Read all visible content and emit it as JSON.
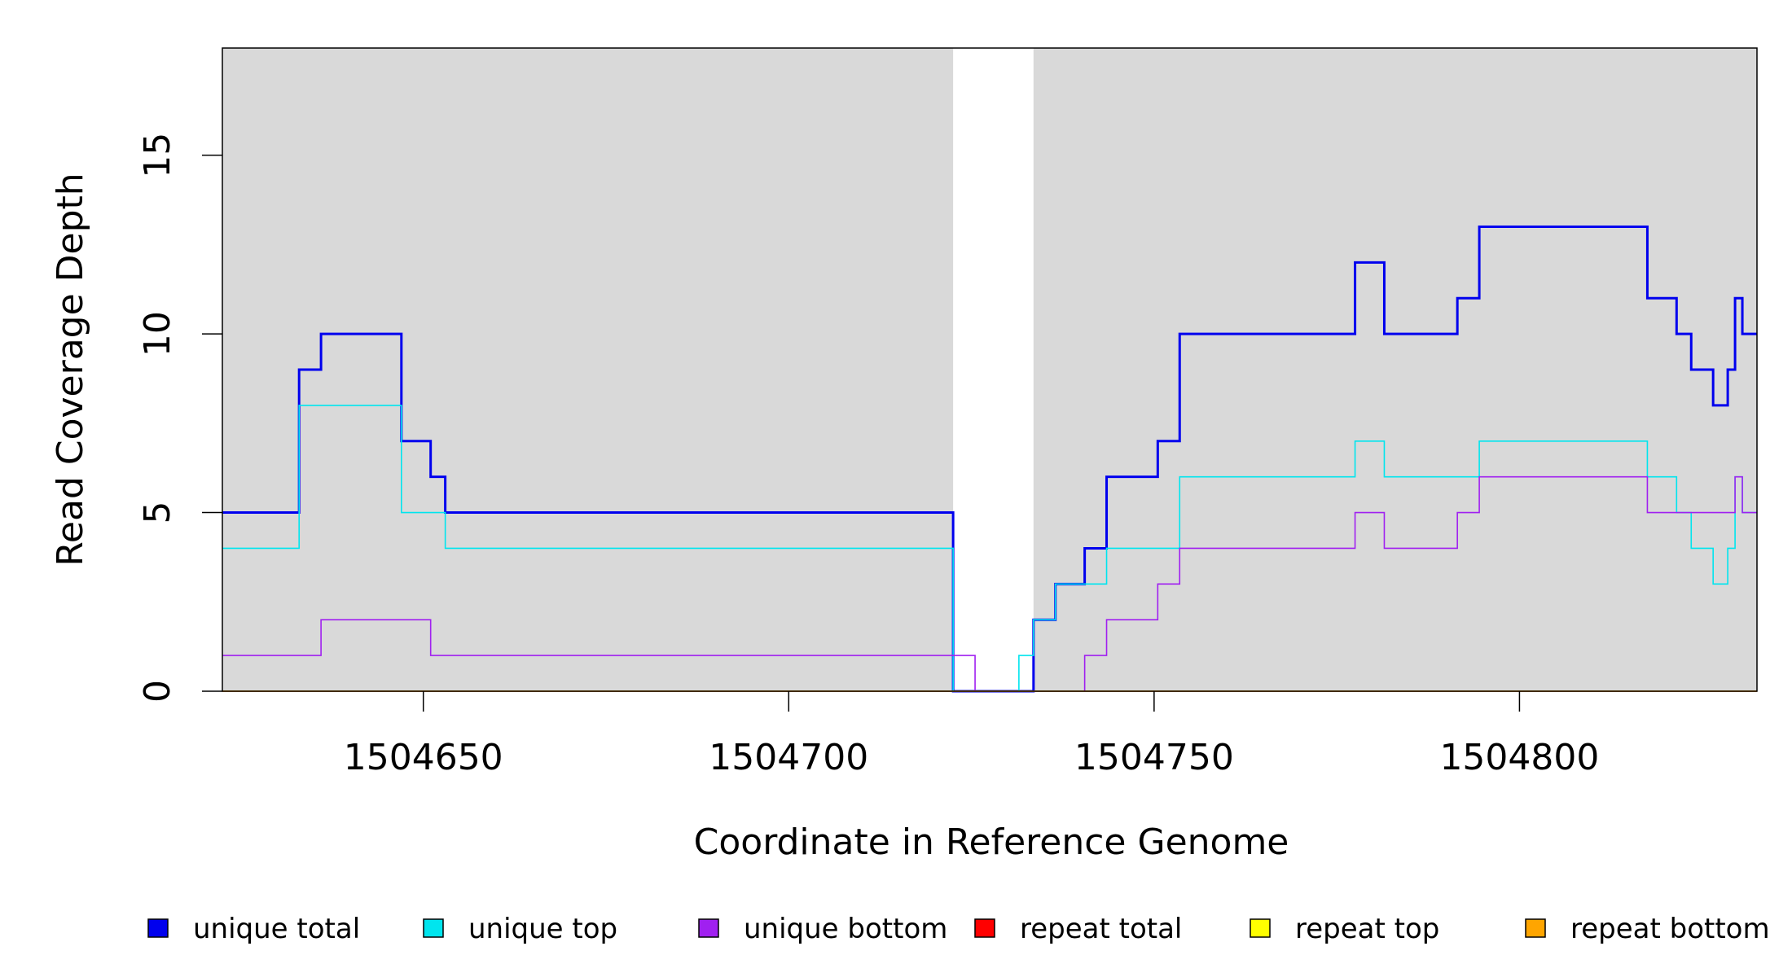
{
  "chart_data": {
    "type": "line",
    "title": "",
    "xlabel": "Coordinate in Reference Genome",
    "ylabel": "Read Coverage Depth",
    "xlim": [
      1504622.5,
      1504832.5
    ],
    "ylim": [
      0,
      18
    ],
    "x_ticks": [
      1504650,
      1504700,
      1504750,
      1504800
    ],
    "y_ticks": [
      0,
      5,
      10,
      15
    ],
    "x_tick_labels": [
      "1504650",
      "1504700",
      "1504750",
      "1504800"
    ],
    "y_tick_labels": [
      "0",
      "5",
      "10",
      "15"
    ],
    "background_color": "#d9d9d9",
    "gap_region": [
      1504722.5,
      1504733.5
    ],
    "legend_position": "bottom",
    "step_interpretation": "each point [x, y] starts a step at coordinate x holding depth y until the next point",
    "series": [
      {
        "name": "unique total",
        "color": "#0000ee",
        "points": [
          [
            1504622.5,
            5
          ],
          [
            1504633,
            5
          ],
          [
            1504633,
            9
          ],
          [
            1504636,
            9
          ],
          [
            1504636,
            10
          ],
          [
            1504647,
            10
          ],
          [
            1504647,
            7
          ],
          [
            1504651,
            7
          ],
          [
            1504651,
            6
          ],
          [
            1504653,
            6
          ],
          [
            1504653,
            5
          ],
          [
            1504722.5,
            5
          ],
          [
            1504722.5,
            0
          ],
          [
            1504733.5,
            0
          ],
          [
            1504733.5,
            2
          ],
          [
            1504736.5,
            2
          ],
          [
            1504736.5,
            3
          ],
          [
            1504740.5,
            3
          ],
          [
            1504740.5,
            4
          ],
          [
            1504743.5,
            4
          ],
          [
            1504743.5,
            6
          ],
          [
            1504750.5,
            6
          ],
          [
            1504750.5,
            7
          ],
          [
            1504753.5,
            7
          ],
          [
            1504753.5,
            10
          ],
          [
            1504777.5,
            10
          ],
          [
            1504777.5,
            12
          ],
          [
            1504781.5,
            12
          ],
          [
            1504781.5,
            10
          ],
          [
            1504791.5,
            10
          ],
          [
            1504791.5,
            11
          ],
          [
            1504794.5,
            11
          ],
          [
            1504794.5,
            13
          ],
          [
            1504817.5,
            13
          ],
          [
            1504817.5,
            11
          ],
          [
            1504821.5,
            11
          ],
          [
            1504821.5,
            10
          ],
          [
            1504823.5,
            10
          ],
          [
            1504823.5,
            9
          ],
          [
            1504826.5,
            9
          ],
          [
            1504826.5,
            8
          ],
          [
            1504828.5,
            8
          ],
          [
            1504828.5,
            9
          ],
          [
            1504829.5,
            9
          ],
          [
            1504829.5,
            11
          ],
          [
            1504830.5,
            11
          ],
          [
            1504830.5,
            10
          ],
          [
            1504832.5,
            10
          ]
        ]
      },
      {
        "name": "unique top",
        "color": "#00e5ee",
        "points": [
          [
            1504622.5,
            4
          ],
          [
            1504633,
            4
          ],
          [
            1504633,
            8
          ],
          [
            1504647,
            8
          ],
          [
            1504647,
            5
          ],
          [
            1504653,
            5
          ],
          [
            1504653,
            4
          ],
          [
            1504722.5,
            4
          ],
          [
            1504722.5,
            0
          ],
          [
            1504731.5,
            0
          ],
          [
            1504731.5,
            1
          ],
          [
            1504733.5,
            1
          ],
          [
            1504733.5,
            2
          ],
          [
            1504736.5,
            2
          ],
          [
            1504736.5,
            3
          ],
          [
            1504743.5,
            3
          ],
          [
            1504743.5,
            4
          ],
          [
            1504753.5,
            4
          ],
          [
            1504753.5,
            6
          ],
          [
            1504777.5,
            6
          ],
          [
            1504777.5,
            7
          ],
          [
            1504781.5,
            7
          ],
          [
            1504781.5,
            6
          ],
          [
            1504794.5,
            6
          ],
          [
            1504794.5,
            7
          ],
          [
            1504817.5,
            7
          ],
          [
            1504817.5,
            6
          ],
          [
            1504821.5,
            6
          ],
          [
            1504821.5,
            5
          ],
          [
            1504823.5,
            5
          ],
          [
            1504823.5,
            4
          ],
          [
            1504826.5,
            4
          ],
          [
            1504826.5,
            3
          ],
          [
            1504828.5,
            3
          ],
          [
            1504828.5,
            4
          ],
          [
            1504829.5,
            4
          ],
          [
            1504829.5,
            6
          ],
          [
            1504830.5,
            6
          ],
          [
            1504830.5,
            5
          ],
          [
            1504832.5,
            5
          ]
        ]
      },
      {
        "name": "unique bottom",
        "color": "#a020f0",
        "points": [
          [
            1504622.5,
            1
          ],
          [
            1504636,
            1
          ],
          [
            1504636,
            2
          ],
          [
            1504651,
            2
          ],
          [
            1504651,
            1
          ],
          [
            1504725.5,
            1
          ],
          [
            1504725.5,
            0
          ],
          [
            1504740.5,
            0
          ],
          [
            1504740.5,
            1
          ],
          [
            1504743.5,
            1
          ],
          [
            1504743.5,
            2
          ],
          [
            1504750.5,
            2
          ],
          [
            1504750.5,
            3
          ],
          [
            1504753.5,
            3
          ],
          [
            1504753.5,
            4
          ],
          [
            1504777.5,
            4
          ],
          [
            1504777.5,
            5
          ],
          [
            1504781.5,
            5
          ],
          [
            1504781.5,
            4
          ],
          [
            1504791.5,
            4
          ],
          [
            1504791.5,
            5
          ],
          [
            1504794.5,
            5
          ],
          [
            1504794.5,
            6
          ],
          [
            1504817.5,
            6
          ],
          [
            1504817.5,
            5
          ],
          [
            1504829.5,
            5
          ],
          [
            1504829.5,
            6
          ],
          [
            1504830.5,
            6
          ],
          [
            1504830.5,
            5
          ],
          [
            1504832.5,
            5
          ]
        ]
      },
      {
        "name": "repeat total",
        "color": "#ff0000",
        "points": [
          [
            1504622.5,
            0
          ],
          [
            1504832.5,
            0
          ]
        ]
      },
      {
        "name": "repeat top",
        "color": "#ffff00",
        "points": [
          [
            1504622.5,
            0
          ],
          [
            1504832.5,
            0
          ]
        ]
      },
      {
        "name": "repeat bottom",
        "color": "#ffa500",
        "points": [
          [
            1504622.5,
            0
          ],
          [
            1504832.5,
            0
          ]
        ]
      }
    ]
  }
}
